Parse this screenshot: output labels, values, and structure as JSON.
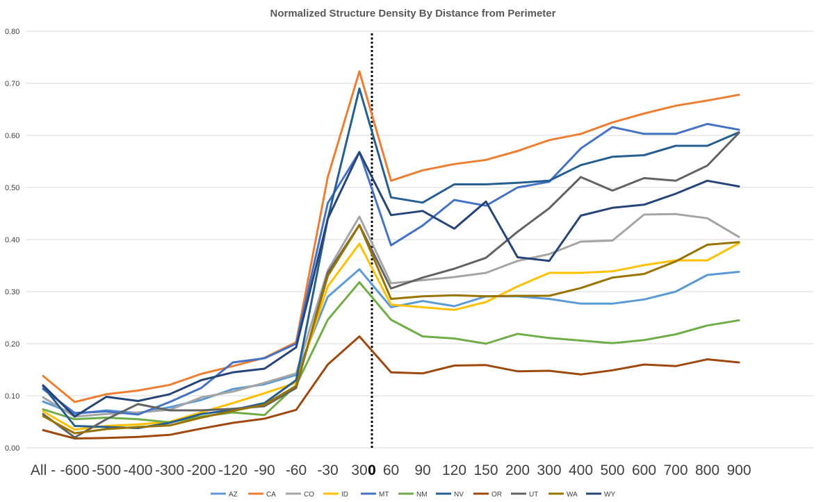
{
  "chart_data": {
    "type": "line",
    "title": "Normalized Structure Density By Distance from Perimeter",
    "xlabel": "",
    "ylabel": "",
    "ylim": [
      0,
      0.8
    ],
    "ytick_labels": [
      "0.00",
      "0.10",
      "0.20",
      "0.30",
      "0.40",
      "0.50",
      "0.60",
      "0.70",
      "0.80"
    ],
    "grid": true,
    "legend_position": "bottom",
    "categories": [
      "All -",
      "-600",
      "-500",
      "-400",
      "-300",
      "-200",
      "-120",
      "-90",
      "-60",
      "-30",
      "30",
      "60",
      "90",
      "120",
      "150",
      "200",
      "300",
      "400",
      "500",
      "600",
      "700",
      "800",
      "900"
    ],
    "perimeter_marker": {
      "label": "0",
      "between": [
        "-30",
        "30"
      ]
    },
    "series": [
      {
        "name": "AZ",
        "color": "#5b9bd5",
        "values": [
          0.089,
          0.065,
          0.072,
          0.067,
          0.078,
          0.092,
          0.113,
          0.122,
          0.14,
          0.29,
          0.343,
          0.27,
          0.282,
          0.272,
          0.291,
          0.291,
          0.286,
          0.277,
          0.277,
          0.285,
          0.3,
          0.332,
          0.338
        ]
      },
      {
        "name": "CA",
        "color": "#ed7d31",
        "values": [
          0.138,
          0.088,
          0.103,
          0.11,
          0.121,
          0.142,
          0.157,
          0.173,
          0.203,
          0.52,
          0.723,
          0.513,
          0.533,
          0.545,
          0.553,
          0.57,
          0.591,
          0.603,
          0.625,
          0.642,
          0.657,
          0.667,
          0.678
        ]
      },
      {
        "name": "CO",
        "color": "#a5a5a5",
        "values": [
          0.097,
          0.06,
          0.065,
          0.068,
          0.073,
          0.097,
          0.108,
          0.125,
          0.143,
          0.341,
          0.444,
          0.316,
          0.322,
          0.328,
          0.336,
          0.359,
          0.372,
          0.396,
          0.398,
          0.448,
          0.449,
          0.441,
          0.405
        ]
      },
      {
        "name": "ID",
        "color": "#ffc000",
        "values": [
          0.07,
          0.035,
          0.042,
          0.045,
          0.05,
          0.068,
          0.086,
          0.105,
          0.125,
          0.31,
          0.392,
          0.275,
          0.27,
          0.265,
          0.28,
          0.31,
          0.336,
          0.336,
          0.339,
          0.351,
          0.36,
          0.36,
          0.393
        ]
      },
      {
        "name": "MT",
        "color": "#4472c4",
        "values": [
          0.113,
          0.067,
          0.07,
          0.064,
          0.088,
          0.115,
          0.164,
          0.172,
          0.2,
          0.47,
          0.568,
          0.389,
          0.427,
          0.476,
          0.465,
          0.5,
          0.511,
          0.575,
          0.616,
          0.603,
          0.603,
          0.622,
          0.611
        ]
      },
      {
        "name": "NM",
        "color": "#70ad47",
        "values": [
          0.074,
          0.055,
          0.058,
          0.055,
          0.049,
          0.06,
          0.068,
          0.063,
          0.12,
          0.246,
          0.318,
          0.246,
          0.214,
          0.21,
          0.2,
          0.219,
          0.211,
          0.206,
          0.201,
          0.207,
          0.218,
          0.235,
          0.245
        ]
      },
      {
        "name": "NV",
        "color": "#255e91",
        "values": [
          0.118,
          0.042,
          0.04,
          0.038,
          0.048,
          0.065,
          0.073,
          0.086,
          0.13,
          0.44,
          0.69,
          0.481,
          0.471,
          0.506,
          0.506,
          0.509,
          0.513,
          0.543,
          0.559,
          0.562,
          0.58,
          0.58,
          0.606
        ]
      },
      {
        "name": "OR",
        "color": "#9e480e",
        "values": [
          0.034,
          0.018,
          0.019,
          0.021,
          0.025,
          0.037,
          0.048,
          0.056,
          0.073,
          0.16,
          0.214,
          0.145,
          0.143,
          0.158,
          0.159,
          0.147,
          0.148,
          0.141,
          0.149,
          0.16,
          0.157,
          0.17,
          0.164
        ]
      },
      {
        "name": "UT",
        "color": "#636363",
        "values": [
          0.065,
          0.02,
          0.055,
          0.084,
          0.072,
          0.072,
          0.075,
          0.08,
          0.115,
          0.336,
          0.428,
          0.306,
          0.327,
          0.344,
          0.365,
          0.415,
          0.46,
          0.52,
          0.494,
          0.518,
          0.513,
          0.542,
          0.605
        ]
      },
      {
        "name": "WA",
        "color": "#997300",
        "values": [
          0.061,
          0.028,
          0.036,
          0.04,
          0.043,
          0.058,
          0.071,
          0.083,
          0.119,
          0.33,
          0.428,
          0.286,
          0.291,
          0.293,
          0.291,
          0.292,
          0.292,
          0.307,
          0.327,
          0.334,
          0.358,
          0.39,
          0.395
        ]
      },
      {
        "name": "WY",
        "color": "#264478",
        "values": [
          0.12,
          0.06,
          0.098,
          0.09,
          0.103,
          0.13,
          0.145,
          0.152,
          0.193,
          0.44,
          0.568,
          0.447,
          0.455,
          0.421,
          0.473,
          0.366,
          0.359,
          0.446,
          0.461,
          0.467,
          0.488,
          0.513,
          0.502
        ]
      }
    ]
  }
}
